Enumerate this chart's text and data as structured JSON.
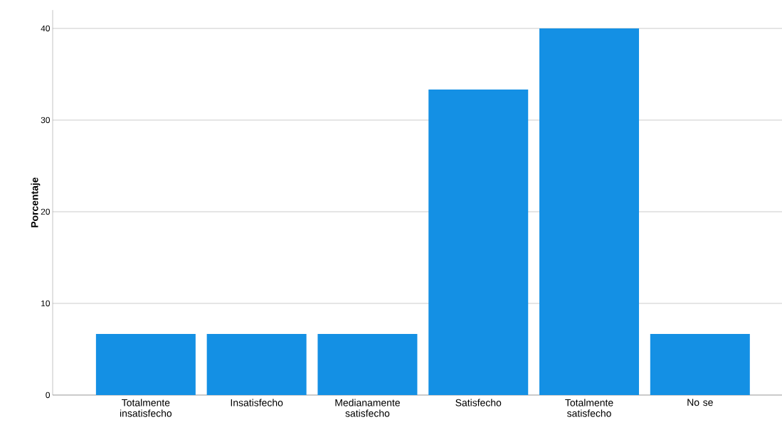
{
  "chart_data": {
    "type": "bar",
    "ylabel": "Porcentaje",
    "categories": [
      "Totalmente insatisfecho",
      "Insatisfecho",
      "Medianamente satisfecho",
      "Satisfecho",
      "Totalmente satisfecho",
      "No se"
    ],
    "values": [
      6.67,
      6.67,
      6.67,
      33.33,
      40,
      6.67
    ],
    "color": "#1490e4",
    "ylim": [
      0,
      42
    ],
    "yticks": [
      0,
      10,
      20,
      30,
      40
    ],
    "grid": "y"
  }
}
